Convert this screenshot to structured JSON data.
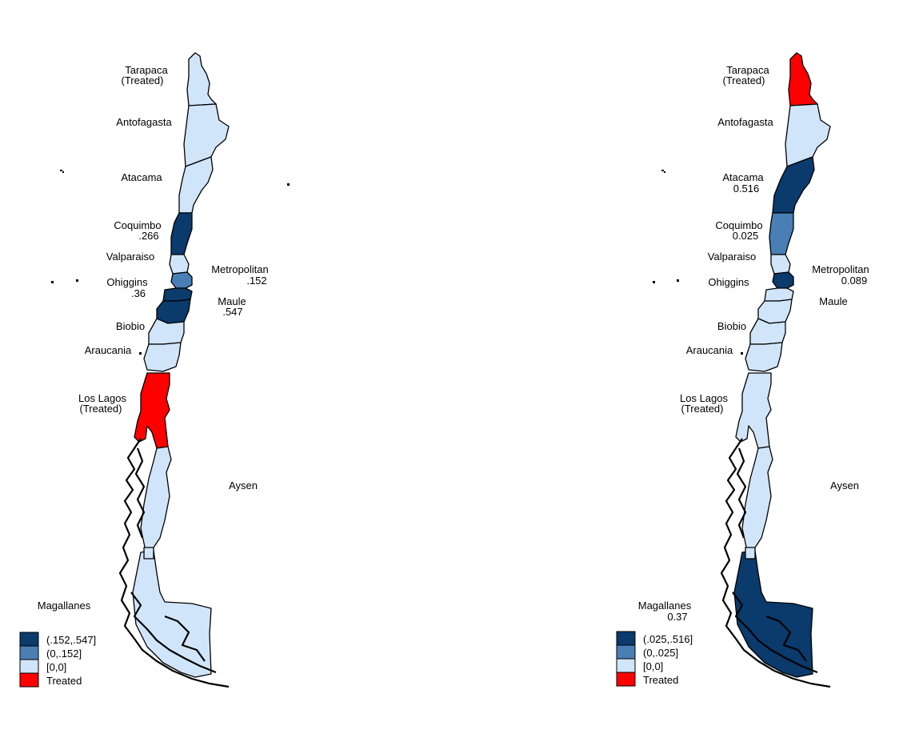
{
  "colors": {
    "dark": "#0b3a6c",
    "mid": "#4a7fb5",
    "light": "#d1e5fa",
    "treated": "#ff0000"
  },
  "maps": [
    {
      "fills": {
        "tarapaca": "light",
        "antofagasta": "light",
        "atacama": "light",
        "coquimbo": "dark",
        "valparaiso": "light",
        "metropolitan": "mid",
        "ohiggins": "dark",
        "maule": "dark",
        "biobio": "light",
        "araucania": "light",
        "loslagos": "treated",
        "aysen": "light",
        "magallanes": "light"
      },
      "labels": {
        "tarapaca": "Tarapaca",
        "tarapaca_note": "(Treated)",
        "antofagasta": "Antofagasta",
        "atacama": "Atacama",
        "atacama_value": "",
        "coquimbo": "Coquimbo",
        "coquimbo_value": ".266",
        "valparaiso": "Valparaiso",
        "metropolitan": "Metropolitan",
        "metropolitan_value": ".152",
        "ohiggins": "Ohiggins",
        "ohiggins_value": ".36",
        "maule": "Maule",
        "maule_value": ".547",
        "biobio": "Biobio",
        "araucania": "Araucania",
        "loslagos": "Los Lagos",
        "loslagos_note": "(Treated)",
        "aysen": "Aysen",
        "magallanes": "Magallanes",
        "magallanes_value": ""
      },
      "legend": [
        {
          "label": "(.152,.547]",
          "fill": "dark"
        },
        {
          "label": "(0,.152]",
          "fill": "mid"
        },
        {
          "label": "[0,0]",
          "fill": "light"
        },
        {
          "label": "Treated",
          "fill": "treated"
        }
      ]
    },
    {
      "fills": {
        "tarapaca": "treated",
        "antofagasta": "light",
        "atacama": "dark",
        "coquimbo": "mid",
        "valparaiso": "light",
        "metropolitan": "dark",
        "ohiggins": "light",
        "maule": "light",
        "biobio": "light",
        "araucania": "light",
        "loslagos": "light",
        "aysen": "light",
        "magallanes": "dark"
      },
      "labels": {
        "tarapaca": "Tarapaca",
        "tarapaca_note": "(Treated)",
        "antofagasta": "Antofagasta",
        "atacama": "Atacama",
        "atacama_value": "0.516",
        "coquimbo": "Coquimbo",
        "coquimbo_value": "0.025",
        "valparaiso": "Valparaiso",
        "metropolitan": "Metropolitan",
        "metropolitan_value": "0.089",
        "ohiggins": "Ohiggins",
        "ohiggins_value": "",
        "maule": "Maule",
        "maule_value": "",
        "biobio": "Biobio",
        "araucania": "Araucania",
        "loslagos": "Los Lagos",
        "loslagos_note": "(Treated)",
        "aysen": "Aysen",
        "magallanes": "Magallanes",
        "magallanes_value": "0.37"
      },
      "legend": [
        {
          "label": "(.025,.516]",
          "fill": "dark"
        },
        {
          "label": "(0,.025]",
          "fill": "mid"
        },
        {
          "label": "[0,0]",
          "fill": "light"
        },
        {
          "label": "Treated",
          "fill": "treated"
        }
      ]
    }
  ]
}
